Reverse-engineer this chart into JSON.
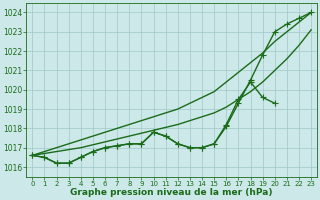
{
  "x": [
    0,
    1,
    2,
    3,
    4,
    5,
    6,
    7,
    8,
    9,
    10,
    11,
    12,
    13,
    14,
    15,
    16,
    17,
    18,
    19,
    20,
    21,
    22,
    23
  ],
  "line_smooth1": [
    1016.6,
    1016.8,
    1017.0,
    1017.2,
    1017.4,
    1017.6,
    1017.8,
    1018.0,
    1018.2,
    1018.4,
    1018.6,
    1018.8,
    1019.0,
    1019.3,
    1019.6,
    1019.9,
    1020.4,
    1020.9,
    1021.4,
    1021.9,
    1022.5,
    1023.0,
    1023.5,
    1024.0
  ],
  "line_smooth2": [
    1016.6,
    1016.7,
    1016.8,
    1016.9,
    1017.0,
    1017.15,
    1017.3,
    1017.45,
    1017.6,
    1017.75,
    1017.9,
    1018.05,
    1018.2,
    1018.4,
    1018.6,
    1018.8,
    1019.1,
    1019.5,
    1019.9,
    1020.4,
    1021.0,
    1021.6,
    1022.3,
    1023.1
  ],
  "line_marker1": [
    1016.6,
    1016.5,
    1016.2,
    1016.2,
    1016.5,
    1016.8,
    1017.0,
    1017.1,
    1017.2,
    1017.2,
    1017.8,
    1017.6,
    1017.2,
    1017.0,
    1017.0,
    1017.2,
    1018.1,
    1019.3,
    1020.5,
    1021.8,
    1023.0,
    1023.4,
    1023.7,
    1024.0
  ],
  "line_marker2": [
    1016.6,
    1016.5,
    1016.2,
    1016.2,
    1016.5,
    1016.8,
    1017.0,
    1017.1,
    1017.2,
    1017.2,
    1017.8,
    1017.6,
    1017.2,
    1017.0,
    1017.0,
    1017.2,
    1018.2,
    1019.5,
    1020.4,
    1019.6,
    1019.3,
    null,
    null,
    null
  ],
  "ylim": [
    1015.5,
    1024.5
  ],
  "yticks": [
    1016,
    1017,
    1018,
    1019,
    1020,
    1021,
    1022,
    1023,
    1024
  ],
  "xlim": [
    -0.5,
    23.5
  ],
  "xticks": [
    0,
    1,
    2,
    3,
    4,
    5,
    6,
    7,
    8,
    9,
    10,
    11,
    12,
    13,
    14,
    15,
    16,
    17,
    18,
    19,
    20,
    21,
    22,
    23
  ],
  "line_color": "#1a6b1a",
  "bg_color": "#cce8e8",
  "grid_color": "#a0c8c8",
  "xlabel": "Graphe pression niveau de la mer (hPa)",
  "xlabel_color": "#1a6b1a",
  "marker": "+",
  "markersize": 4,
  "linewidth": 1.0
}
